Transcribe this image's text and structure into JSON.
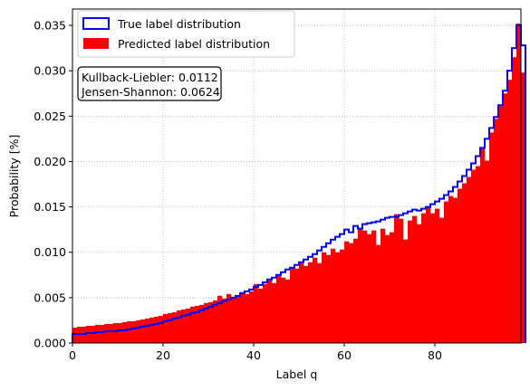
{
  "chart_data": {
    "type": "bar",
    "title": "",
    "xlabel": "Label q",
    "ylabel": "Probability [%]",
    "xlim": [
      0,
      99
    ],
    "ylim": [
      0,
      0.0368
    ],
    "grid": true,
    "legend_position": "top-left",
    "x_ticks": [
      0,
      20,
      40,
      60,
      80
    ],
    "x_tick_labels": [
      "0",
      "20",
      "40",
      "60",
      "80"
    ],
    "y_ticks": [
      0,
      0.005,
      0.01,
      0.015,
      0.02,
      0.025,
      0.03,
      0.035
    ],
    "y_tick_labels": [
      "0.000",
      "0.005",
      "0.010",
      "0.015",
      "0.020",
      "0.025",
      "0.030",
      "0.035"
    ],
    "bin_edges_start": 0,
    "bin_width": 1,
    "series": [
      {
        "name": "True label distribution",
        "style": "step",
        "color": "#0000ff",
        "values": [
          0.001,
          0.001,
          0.001,
          0.0011,
          0.0011,
          0.0012,
          0.0012,
          0.0013,
          0.0013,
          0.0013,
          0.0014,
          0.0014,
          0.0015,
          0.0016,
          0.0017,
          0.0018,
          0.0019,
          0.002,
          0.0021,
          0.0022,
          0.0024,
          0.0025,
          0.0027,
          0.0028,
          0.003,
          0.0031,
          0.0033,
          0.0034,
          0.0036,
          0.0038,
          0.004,
          0.0042,
          0.0044,
          0.0046,
          0.0048,
          0.005,
          0.0052,
          0.0055,
          0.0057,
          0.0059,
          0.0062,
          0.0064,
          0.0067,
          0.007,
          0.0072,
          0.0075,
          0.0078,
          0.0081,
          0.0083,
          0.0086,
          0.0089,
          0.0092,
          0.0095,
          0.0098,
          0.0102,
          0.0106,
          0.011,
          0.0114,
          0.0117,
          0.012,
          0.0125,
          0.0122,
          0.0129,
          0.0126,
          0.0131,
          0.0132,
          0.0133,
          0.0134,
          0.0136,
          0.0138,
          0.0139,
          0.0139,
          0.0141,
          0.0143,
          0.0145,
          0.0147,
          0.0146,
          0.0148,
          0.015,
          0.0153,
          0.0156,
          0.0159,
          0.0163,
          0.0167,
          0.0172,
          0.0178,
          0.0184,
          0.0191,
          0.0198,
          0.0206,
          0.0215,
          0.0225,
          0.0237,
          0.0249,
          0.0262,
          0.0278,
          0.03,
          0.0325,
          0.035,
          0.0328
        ]
      },
      {
        "name": "Predicted label distribution",
        "style": "bar",
        "color": "#ff0000",
        "values": [
          0.0017,
          0.0018,
          0.0018,
          0.0019,
          0.0019,
          0.002,
          0.002,
          0.0021,
          0.0021,
          0.0022,
          0.0022,
          0.0023,
          0.0024,
          0.0024,
          0.0025,
          0.0026,
          0.0027,
          0.0028,
          0.0029,
          0.003,
          0.0032,
          0.0033,
          0.0034,
          0.0036,
          0.0037,
          0.0038,
          0.004,
          0.0041,
          0.0042,
          0.0044,
          0.0045,
          0.0047,
          0.0052,
          0.0049,
          0.0054,
          0.0051,
          0.0052,
          0.0056,
          0.0054,
          0.0057,
          0.0065,
          0.006,
          0.0065,
          0.007,
          0.0066,
          0.0075,
          0.0072,
          0.007,
          0.0083,
          0.0082,
          0.0088,
          0.0085,
          0.0089,
          0.0094,
          0.0088,
          0.01,
          0.0097,
          0.0104,
          0.01,
          0.0103,
          0.0112,
          0.011,
          0.0115,
          0.0127,
          0.0124,
          0.012,
          0.0124,
          0.0108,
          0.0126,
          0.0119,
          0.0122,
          0.0142,
          0.0137,
          0.0114,
          0.0135,
          0.014,
          0.0131,
          0.0143,
          0.015,
          0.0143,
          0.0148,
          0.0138,
          0.0156,
          0.0162,
          0.016,
          0.017,
          0.0176,
          0.0183,
          0.0191,
          0.0195,
          0.0216,
          0.0201,
          0.0232,
          0.0247,
          0.0263,
          0.0275,
          0.029,
          0.0315,
          0.0352,
          0.0298
        ]
      }
    ],
    "annotation": [
      "Kullback-Liebler: 0.0112",
      "Jensen-Shannon: 0.0624"
    ]
  }
}
